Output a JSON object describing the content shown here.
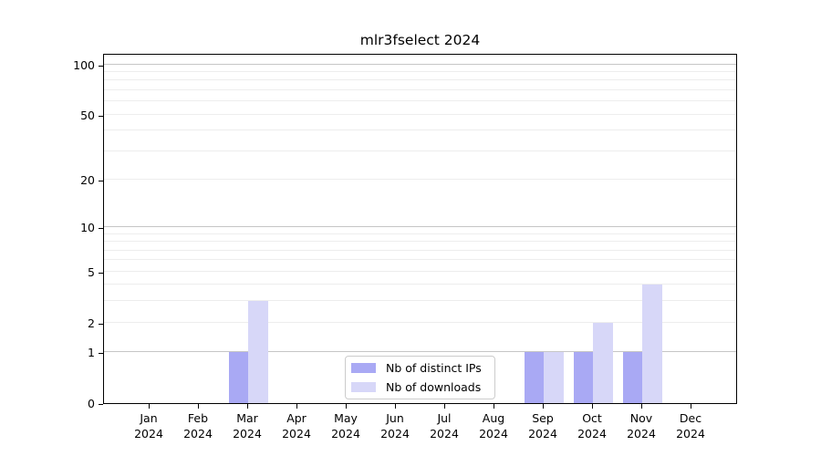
{
  "chart_data": {
    "type": "bar",
    "title": "mlr3fselect 2024",
    "xlabel": "",
    "ylabel": "",
    "x_categories": [
      "Jan",
      "Feb",
      "Mar",
      "Apr",
      "May",
      "Jun",
      "Jul",
      "Aug",
      "Sep",
      "Oct",
      "Nov",
      "Dec"
    ],
    "x_year_label": "2024",
    "series": [
      {
        "key": "distinct-ips",
        "name": "Nb of distinct IPs",
        "color": "#a9a9f4",
        "values": [
          0,
          0,
          1,
          0,
          0,
          0,
          0,
          0,
          1,
          1,
          1,
          0
        ]
      },
      {
        "key": "downloads",
        "name": "Nb of downloads",
        "color": "#d7d7f8",
        "values": [
          0,
          0,
          3,
          0,
          0,
          0,
          0,
          0,
          1,
          2,
          4,
          0
        ]
      }
    ],
    "y_scale": "log10(1+x)",
    "ylim": [
      0,
      117
    ],
    "y_tick_labels": [
      100,
      50,
      20,
      10,
      5,
      2,
      1,
      0
    ],
    "y_grid_major": [
      1,
      10,
      100
    ],
    "y_grid_minor": [
      2,
      3,
      4,
      5,
      6,
      7,
      8,
      9,
      20,
      30,
      40,
      50,
      60,
      70,
      80,
      90
    ],
    "grid": true,
    "legend_position": "bottom-center-inside",
    "colors": {
      "grid_major": "#c6c6c6",
      "grid_minor": "#ededed",
      "axis": "#000000",
      "legend_border": "#cccccc",
      "background": "#ffffff"
    }
  }
}
